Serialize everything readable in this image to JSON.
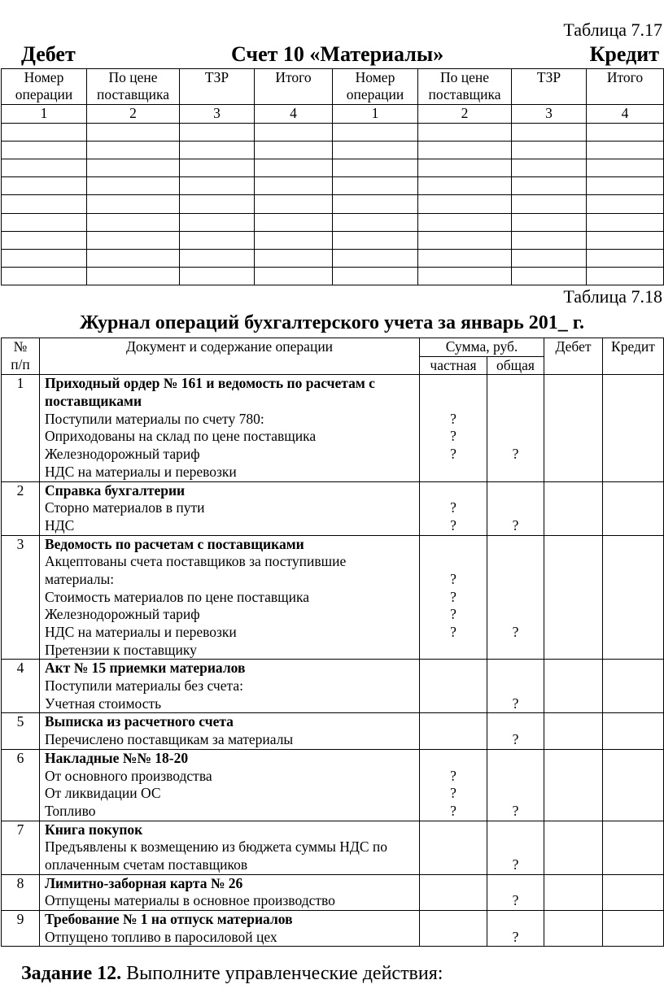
{
  "table717": {
    "caption": "Таблица 7.17",
    "debit": "Дебет",
    "title": "Счет 10 «Материалы»",
    "credit": "Кредит",
    "headers": [
      [
        "Номер",
        "операции"
      ],
      [
        "По цене",
        "поставщика"
      ],
      [
        "ТЗР"
      ],
      [
        "Итого"
      ],
      [
        "Номер",
        "операции"
      ],
      [
        "По цене",
        "поставщика"
      ],
      [
        "ТЗР"
      ],
      [
        "Итого"
      ]
    ],
    "numbers": [
      "1",
      "2",
      "3",
      "4",
      "1",
      "2",
      "3",
      "4"
    ],
    "empty_rows": 9
  },
  "table718": {
    "caption": "Таблица 7.18",
    "title": "Журнал операций бухгалтерского учета за январь 201_ г.",
    "headers": {
      "num": [
        "№",
        "п/п"
      ],
      "doc": "Документ и содержание операции",
      "sum": "Сумма, руб.",
      "partial": "частная",
      "total": "общая",
      "debit": "Дебет",
      "credit": "Кредит"
    },
    "rows": [
      {
        "n": "1",
        "title": [
          "Приходный ордер № 161 и ведомость по расчетам с",
          "поставщиками"
        ],
        "lines": [
          {
            "t": "Поступили материалы по счету 780:",
            "p": "?",
            "s": ""
          },
          {
            "t": "Оприходованы на склад по цене поставщика",
            "p": "?",
            "s": ""
          },
          {
            "t": "Железнодорожный тариф",
            "p": "?",
            "s": "?"
          },
          {
            "t": "НДС на материалы и перевозки",
            "p": "",
            "s": ""
          }
        ]
      },
      {
        "n": "2",
        "title": [
          "Справка бухгалтерии"
        ],
        "lines": [
          {
            "t": "Сторно материалов в пути",
            "p": "?",
            "s": ""
          },
          {
            "t": "НДС",
            "p": "?",
            "s": "?"
          }
        ]
      },
      {
        "n": "3",
        "title": [
          "Ведомость по расчетам с поставщиками"
        ],
        "lines": [
          {
            "t": "Акцептованы счета поставщиков за поступившие",
            "p": "",
            "s": ""
          },
          {
            "t": "материалы:",
            "p": "?",
            "s": ""
          },
          {
            "t": "Стоимость материалов по цене поставщика",
            "p": "?",
            "s": ""
          },
          {
            "t": "Железнодорожный тариф",
            "p": "?",
            "s": ""
          },
          {
            "t": "НДС на материалы и перевозки",
            "p": "?",
            "s": "?"
          },
          {
            "t": "Претензии к поставщику",
            "p": "",
            "s": ""
          }
        ]
      },
      {
        "n": "4",
        "title": [
          "Акт № 15 приемки материалов"
        ],
        "lines": [
          {
            "t": "Поступили материалы без счета:",
            "p": "",
            "s": ""
          },
          {
            "t": "Учетная стоимость",
            "p": "",
            "s": "?"
          }
        ]
      },
      {
        "n": "5",
        "title": [
          "Выписка из расчетного счета"
        ],
        "lines": [
          {
            "t": "Перечислено поставщикам за материалы",
            "p": "",
            "s": "?"
          }
        ]
      },
      {
        "n": "6",
        "title": [
          "Накладные №№ 18-20"
        ],
        "lines": [
          {
            "t": "От основного производства",
            "p": "?",
            "s": ""
          },
          {
            "t": "От ликвидации ОС",
            "p": "?",
            "s": ""
          },
          {
            "t": "Топливо",
            "p": "?",
            "s": "?"
          }
        ]
      },
      {
        "n": "7",
        "title": [
          "Книга покупок"
        ],
        "lines": [
          {
            "t": "Предъявлены к возмещению из бюджета суммы НДС по",
            "p": "",
            "s": ""
          },
          {
            "t": "оплаченным счетам поставщиков",
            "p": "",
            "s": "?"
          }
        ]
      },
      {
        "n": "8",
        "title": [
          "Лимитно-заборная карта № 26"
        ],
        "lines": [
          {
            "t": "Отпущены материалы в основное производство",
            "p": "",
            "s": "?"
          }
        ]
      },
      {
        "n": "9",
        "title": [
          "Требование № 1 на отпуск материалов"
        ],
        "lines": [
          {
            "t": "Отпущено топливо в паросиловой цех",
            "p": "",
            "s": "?"
          }
        ]
      }
    ]
  },
  "task": {
    "label": "Задание 12.",
    "text": " Выполните управленческие действия:"
  }
}
